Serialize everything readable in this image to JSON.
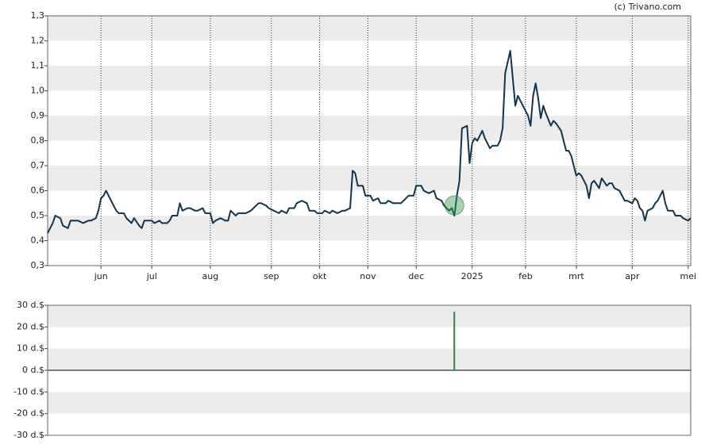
{
  "chart_data": [
    {
      "type": "line",
      "credit": "(c) Trivano.com",
      "color": "#12344d",
      "x": [
        0,
        2,
        3,
        5,
        6,
        8,
        9,
        11,
        12,
        14,
        16,
        17,
        19,
        20,
        21,
        22,
        23,
        25,
        27,
        28,
        30,
        31,
        33,
        34,
        36,
        37,
        38,
        41,
        42,
        44,
        45,
        47,
        48,
        49,
        51,
        52,
        53,
        55,
        56,
        58,
        59,
        61,
        62,
        64,
        65,
        66,
        68,
        70,
        71,
        72,
        74,
        75,
        77,
        78,
        80,
        81,
        83,
        84,
        86,
        87,
        89,
        91,
        92,
        94,
        95,
        97,
        98,
        100,
        102,
        103,
        105,
        106,
        108,
        109,
        111,
        112,
        114,
        116,
        117,
        119,
        120,
        121,
        122,
        124,
        125,
        127,
        128,
        130,
        131,
        133,
        134,
        136,
        137,
        139,
        141,
        142,
        144,
        145,
        147,
        148,
        150,
        152,
        153,
        155,
        156,
        158,
        159,
        160,
        161,
        162,
        163,
        165,
        166,
        167,
        168,
        169,
        171,
        172,
        174,
        175,
        177,
        178,
        179,
        180,
        182,
        183,
        184,
        185,
        187,
        188,
        189,
        190,
        191,
        192,
        193,
        194,
        195,
        196,
        198,
        199,
        200,
        202,
        203,
        204,
        205,
        206,
        208,
        209,
        210,
        212,
        213,
        214,
        215,
        217,
        218,
        220,
        221,
        222,
        223,
        225,
        227,
        228,
        230,
        231,
        232,
        233,
        234,
        235,
        236,
        238,
        239,
        240,
        242,
        243,
        244,
        246,
        247,
        249,
        250,
        252,
        253
      ],
      "values": [
        0.43,
        0.47,
        0.5,
        0.49,
        0.46,
        0.45,
        0.48,
        0.48,
        0.48,
        0.47,
        0.48,
        0.48,
        0.49,
        0.52,
        0.57,
        0.58,
        0.6,
        0.56,
        0.52,
        0.51,
        0.51,
        0.49,
        0.47,
        0.49,
        0.46,
        0.45,
        0.48,
        0.48,
        0.47,
        0.48,
        0.47,
        0.47,
        0.48,
        0.5,
        0.5,
        0.55,
        0.52,
        0.53,
        0.53,
        0.52,
        0.52,
        0.53,
        0.51,
        0.51,
        0.47,
        0.48,
        0.49,
        0.48,
        0.48,
        0.52,
        0.5,
        0.51,
        0.51,
        0.51,
        0.52,
        0.53,
        0.55,
        0.55,
        0.54,
        0.53,
        0.52,
        0.51,
        0.52,
        0.51,
        0.53,
        0.53,
        0.55,
        0.56,
        0.55,
        0.52,
        0.52,
        0.51,
        0.51,
        0.52,
        0.51,
        0.52,
        0.51,
        0.52,
        0.52,
        0.53,
        0.68,
        0.67,
        0.62,
        0.62,
        0.58,
        0.58,
        0.56,
        0.57,
        0.55,
        0.55,
        0.56,
        0.55,
        0.55,
        0.55,
        0.57,
        0.58,
        0.58,
        0.62,
        0.62,
        0.6,
        0.59,
        0.6,
        0.57,
        0.56,
        0.54,
        0.52,
        0.53,
        0.5,
        0.58,
        0.64,
        0.85,
        0.86,
        0.71,
        0.79,
        0.81,
        0.8,
        0.84,
        0.81,
        0.77,
        0.78,
        0.78,
        0.8,
        0.85,
        1.07,
        1.16,
        1.05,
        0.94,
        0.98,
        0.94,
        0.92,
        0.9,
        0.86,
        0.98,
        1.03,
        0.97,
        0.89,
        0.94,
        0.91,
        0.86,
        0.88,
        0.87,
        0.84,
        0.8,
        0.76,
        0.76,
        0.74,
        0.66,
        0.67,
        0.66,
        0.62,
        0.57,
        0.63,
        0.64,
        0.61,
        0.65,
        0.62,
        0.63,
        0.63,
        0.61,
        0.6,
        0.56,
        0.56,
        0.55,
        0.57,
        0.56,
        0.53,
        0.52,
        0.48,
        0.52,
        0.53,
        0.55,
        0.56,
        0.6,
        0.55,
        0.52,
        0.52,
        0.5,
        0.5,
        0.49,
        0.48,
        0.49
      ],
      "xlim": [
        0,
        253
      ],
      "xticks": [
        {
          "value": 21,
          "label": "jun"
        },
        {
          "value": 41,
          "label": "jul"
        },
        {
          "value": 64,
          "label": "aug"
        },
        {
          "value": 88,
          "label": "sep"
        },
        {
          "value": 107,
          "label": "okt"
        },
        {
          "value": 126,
          "label": "nov"
        },
        {
          "value": 145,
          "label": "dec"
        },
        {
          "value": 167,
          "label": "2025"
        },
        {
          "value": 188,
          "label": "feb"
        },
        {
          "value": 208,
          "label": "mrt"
        },
        {
          "value": 230,
          "label": "apr"
        },
        {
          "value": 252,
          "label": "mei"
        }
      ],
      "ylim": [
        0.3,
        1.3
      ],
      "yticks": [
        {
          "value": 1.3,
          "label": "1,3"
        },
        {
          "value": 1.2,
          "label": "1,2"
        },
        {
          "value": 1.1,
          "label": "1,1"
        },
        {
          "value": 1.0,
          "label": "1,0"
        },
        {
          "value": 0.9,
          "label": "0,9"
        },
        {
          "value": 0.8,
          "label": "0,8"
        },
        {
          "value": 0.7,
          "label": "0,7"
        },
        {
          "value": 0.6,
          "label": "0,6"
        },
        {
          "value": 0.5,
          "label": "0,5"
        },
        {
          "value": 0.4,
          "label": "0,4"
        },
        {
          "value": 0.3,
          "label": "0,3"
        }
      ],
      "grid": "bands"
    },
    {
      "type": "bar",
      "color": "#2e8540",
      "x": [
        160
      ],
      "values": [
        27
      ],
      "xlim": [
        0,
        253
      ],
      "ylim": [
        -30,
        30
      ],
      "yticks": [
        {
          "value": 30,
          "label": "30 d.$"
        },
        {
          "value": 20,
          "label": "20 d.$"
        },
        {
          "value": 10,
          "label": "10 d.$"
        },
        {
          "value": 0,
          "label": "0 d.$"
        },
        {
          "value": -10,
          "label": "-10 d.$"
        },
        {
          "value": -20,
          "label": "-20 d.$"
        },
        {
          "value": -30,
          "label": "-30 d.$"
        }
      ],
      "grid": "bands"
    }
  ]
}
